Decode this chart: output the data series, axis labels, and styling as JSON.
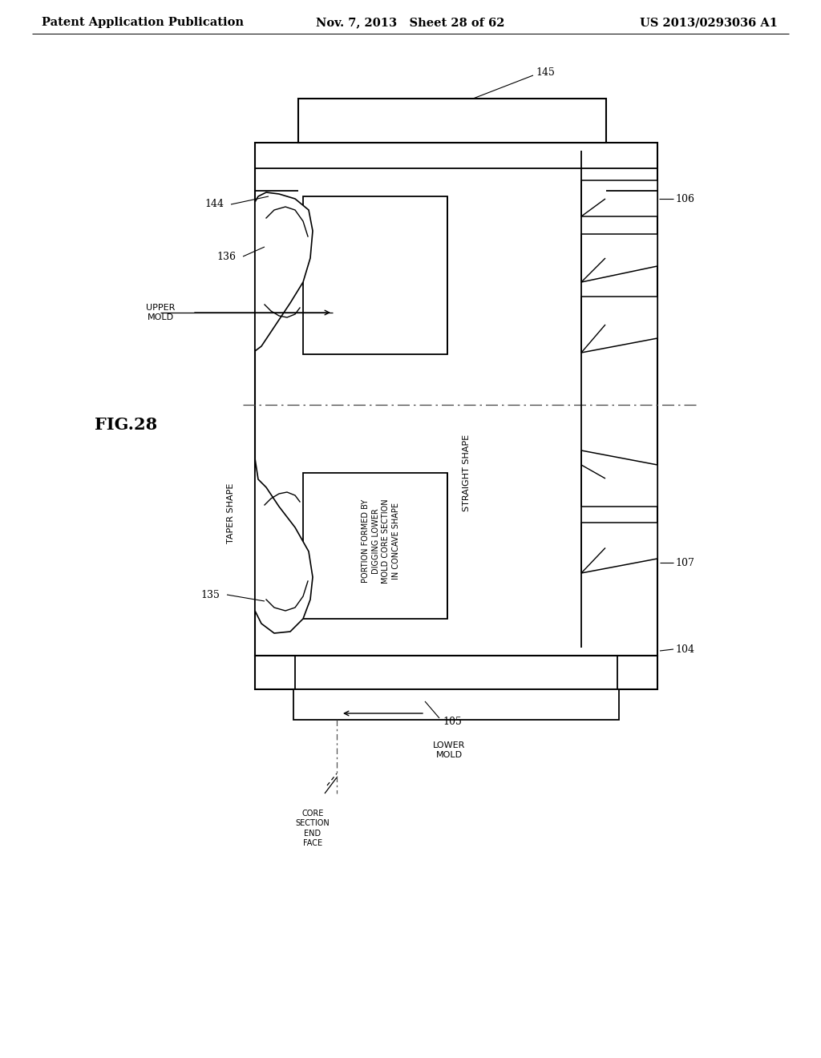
{
  "title_left": "Patent Application Publication",
  "title_center": "Nov. 7, 2013   Sheet 28 of 62",
  "title_right": "US 2013/0293036 A1",
  "fig_label": "FIG.28",
  "background_color": "#ffffff",
  "line_color": "#000000",
  "header_fontsize": 10.5,
  "label_fontsize": 9,
  "fig_label_fontsize": 15,
  "note_fontsize": 8,
  "callout_fontsize": 9
}
